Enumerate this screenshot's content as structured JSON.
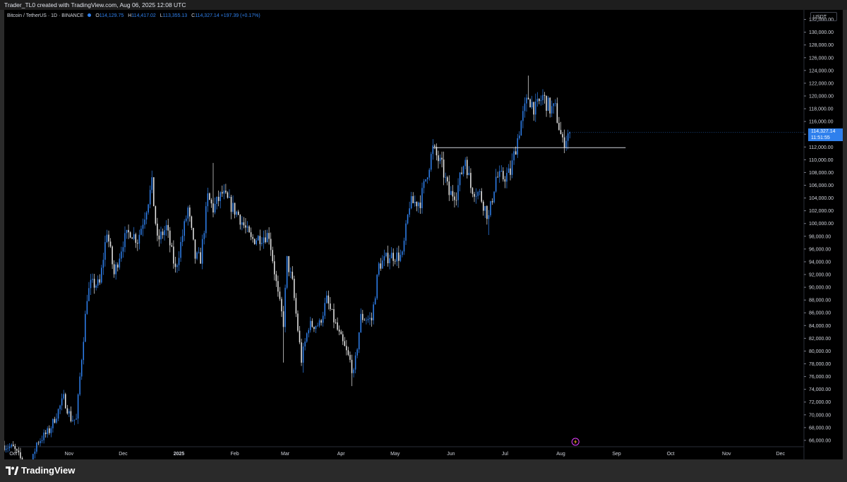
{
  "credit": "Trader_TL0 created with TradingView.com, Aug 06, 2025 12:08 UTC",
  "legend": {
    "symbol": "Bitcoin / TetherUS · 1D · BINANCE",
    "o_label": "O",
    "o_value": "114,129.75",
    "h_label": "H",
    "h_value": "114,417.02",
    "l_label": "L",
    "l_value": "113,355.13",
    "c_label": "C",
    "c_value": "114,327.14",
    "change": "+197.39 (+0.17%)"
  },
  "currency": "USDT",
  "last_price": "114,327.14",
  "countdown": "11:51:55",
  "brand": "TradingView",
  "colors": {
    "up": "#2f80ed",
    "down": "#e8e8e8",
    "background": "#000000",
    "accent": "#2f80ed",
    "horizontal_line": "#d1d4dc"
  },
  "icons": {
    "logo": "tradingview-logo-icon",
    "event": "lightning-icon"
  },
  "chart_data": {
    "type": "candlestick",
    "ylim": [
      65000,
      133500
    ],
    "y_ticks": [
      "66,000.00",
      "68,000.00",
      "70,000.00",
      "72,000.00",
      "74,000.00",
      "76,000.00",
      "78,000.00",
      "80,000.00",
      "82,000.00",
      "84,000.00",
      "86,000.00",
      "88,000.00",
      "90,000.00",
      "92,000.00",
      "94,000.00",
      "96,000.00",
      "98,000.00",
      "100,000.00",
      "102,000.00",
      "104,000.00",
      "106,000.00",
      "108,000.00",
      "110,000.00",
      "112,000.00",
      "114,000.00",
      "116,000.00",
      "118,000.00",
      "120,000.00",
      "122,000.00",
      "124,000.00",
      "126,000.00",
      "128,000.00",
      "130,000.00",
      "132,000.00"
    ],
    "x_ticks": [
      "Oct",
      "Nov",
      "Dec",
      "2025",
      "Feb",
      "Mar",
      "Apr",
      "May",
      "Jun",
      "Jul",
      "Aug",
      "Sep",
      "Oct",
      "Nov",
      "Dec"
    ],
    "x_tick_dates": [
      "2024-10-01",
      "2024-11-01",
      "2024-12-01",
      "2025-01-01",
      "2025-02-01",
      "2025-03-01",
      "2025-04-01",
      "2025-05-01",
      "2025-06-01",
      "2025-07-01",
      "2025-08-01",
      "2025-09-01",
      "2025-10-01",
      "2025-11-01",
      "2025-12-01"
    ],
    "x_range": [
      "2024-09-26",
      "2025-12-14"
    ],
    "horizontal_line": {
      "price": 111900,
      "from": "2025-05-22",
      "to": "2025-09-06"
    },
    "closes": [
      [
        "2024-09-26",
        65200
      ],
      [
        "2024-10-01",
        64800
      ],
      [
        "2024-10-10",
        61000
      ],
      [
        "2024-10-14",
        65600
      ],
      [
        "2024-10-21",
        67500
      ],
      [
        "2024-10-29",
        72600
      ],
      [
        "2024-11-02",
        69400
      ],
      [
        "2024-11-05",
        69200
      ],
      [
        "2024-11-07",
        75900
      ],
      [
        "2024-11-11",
        88600
      ],
      [
        "2024-11-13",
        90400
      ],
      [
        "2024-11-18",
        90500
      ],
      [
        "2024-11-22",
        98900
      ],
      [
        "2024-11-26",
        92000
      ],
      [
        "2024-12-01",
        97200
      ],
      [
        "2024-12-05",
        98800
      ],
      [
        "2024-12-09",
        97400
      ],
      [
        "2024-12-13",
        101400
      ],
      [
        "2024-12-17",
        106100
      ],
      [
        "2024-12-20",
        97200
      ],
      [
        "2024-12-25",
        99400
      ],
      [
        "2024-12-30",
        92700
      ],
      [
        "2025-01-06",
        102300
      ],
      [
        "2025-01-10",
        94700
      ],
      [
        "2025-01-13",
        94500
      ],
      [
        "2025-01-17",
        104100
      ],
      [
        "2025-01-20",
        102300
      ],
      [
        "2025-01-25",
        104700
      ],
      [
        "2025-01-31",
        102400
      ],
      [
        "2025-02-03",
        101400
      ],
      [
        "2025-02-10",
        97400
      ],
      [
        "2025-02-20",
        98300
      ],
      [
        "2025-02-25",
        88700
      ],
      [
        "2025-02-28",
        84400
      ],
      [
        "2025-03-02",
        94200
      ],
      [
        "2025-03-05",
        90600
      ],
      [
        "2025-03-10",
        78600
      ],
      [
        "2025-03-14",
        84000
      ],
      [
        "2025-03-20",
        84200
      ],
      [
        "2025-03-24",
        88000
      ],
      [
        "2025-03-31",
        82500
      ],
      [
        "2025-04-06",
        78400
      ],
      [
        "2025-04-08",
        76300
      ],
      [
        "2025-04-12",
        85300
      ],
      [
        "2025-04-18",
        84900
      ],
      [
        "2025-04-22",
        93400
      ],
      [
        "2025-04-28",
        95000
      ],
      [
        "2025-05-05",
        94800
      ],
      [
        "2025-05-09",
        103100
      ],
      [
        "2025-05-15",
        103500
      ],
      [
        "2025-05-22",
        111700
      ],
      [
        "2025-05-27",
        108900
      ],
      [
        "2025-05-31",
        104600
      ],
      [
        "2025-06-04",
        104800
      ],
      [
        "2025-06-09",
        110300
      ],
      [
        "2025-06-12",
        105700
      ],
      [
        "2025-06-17",
        104600
      ],
      [
        "2025-06-22",
        100900
      ],
      [
        "2025-06-26",
        107300
      ],
      [
        "2025-06-30",
        107200
      ],
      [
        "2025-07-04",
        108000
      ],
      [
        "2025-07-10",
        116000
      ],
      [
        "2025-07-14",
        119800
      ],
      [
        "2025-07-18",
        117900
      ],
      [
        "2025-07-22",
        119900
      ],
      [
        "2025-07-26",
        118000
      ],
      [
        "2025-07-29",
        117900
      ],
      [
        "2025-08-02",
        112500
      ],
      [
        "2025-08-05",
        114100
      ],
      [
        "2025-08-06",
        114327
      ]
    ]
  }
}
